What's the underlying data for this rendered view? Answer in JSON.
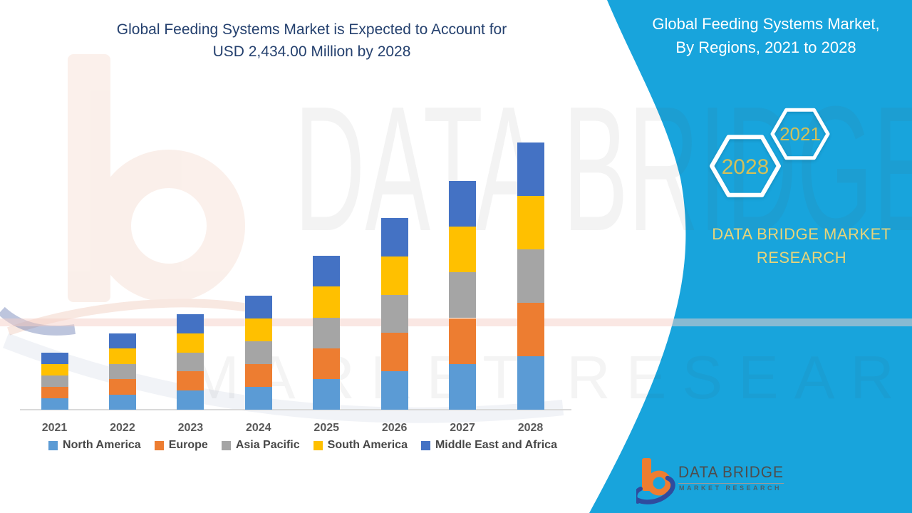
{
  "title": {
    "line1": "Global Feeding Systems Market is Expected to Account for",
    "line2": "USD 2,434.00 Million by 2028"
  },
  "panel": {
    "title_line1": "Global Feeding Systems Market,",
    "title_line2": "By Regions, 2021 to 2028",
    "brand_line1": "DATA BRIDGE MARKET",
    "brand_line2": "RESEARCH",
    "hexagon_small_label": "2021",
    "hexagon_large_label": "2028",
    "panel_color": "#18A4DC",
    "hexagon_text_color": "#D2C05A",
    "brand_text_color": "#E7D47A"
  },
  "watermark": {
    "row1": "DATA BRIDGE",
    "row2": "MARKET RESEARCH"
  },
  "logo": {
    "wordmark": "DATA BRIDGE",
    "subtext": "MARKET RESEARCH",
    "orange": "#ED7D31",
    "navy": "#2F4B9E"
  },
  "chart_data": {
    "type": "bar",
    "stacked": true,
    "unit": "USD Million",
    "categories": [
      "2021",
      "2022",
      "2023",
      "2024",
      "2025",
      "2026",
      "2027",
      "2028"
    ],
    "series": [
      {
        "name": "North America",
        "color": "#5B9BD5",
        "values": [
          104,
          139,
          174,
          208,
          280,
          349,
          417,
          487
        ]
      },
      {
        "name": "Europe",
        "color": "#ED7D31",
        "values": [
          104,
          139,
          174,
          208,
          280,
          349,
          417,
          487
        ]
      },
      {
        "name": "Asia Pacific",
        "color": "#A5A5A5",
        "values": [
          104,
          139,
          174,
          208,
          280,
          349,
          417,
          487
        ]
      },
      {
        "name": "South America",
        "color": "#FFC000",
        "values": [
          104,
          139,
          174,
          208,
          280,
          349,
          417,
          487
        ]
      },
      {
        "name": "Middle East and Africa",
        "color": "#4472C4",
        "values": [
          104,
          139,
          174,
          208,
          280,
          349,
          417,
          486
        ]
      }
    ],
    "totals": [
      520,
      695,
      870,
      1040,
      1400,
      1745,
      2085,
      2434
    ],
    "ylim": [
      0,
      2500
    ],
    "grid": false,
    "legend_position": "bottom",
    "annotation": "Final-year total labeled in title as USD 2,434.00 Million by 2028"
  }
}
